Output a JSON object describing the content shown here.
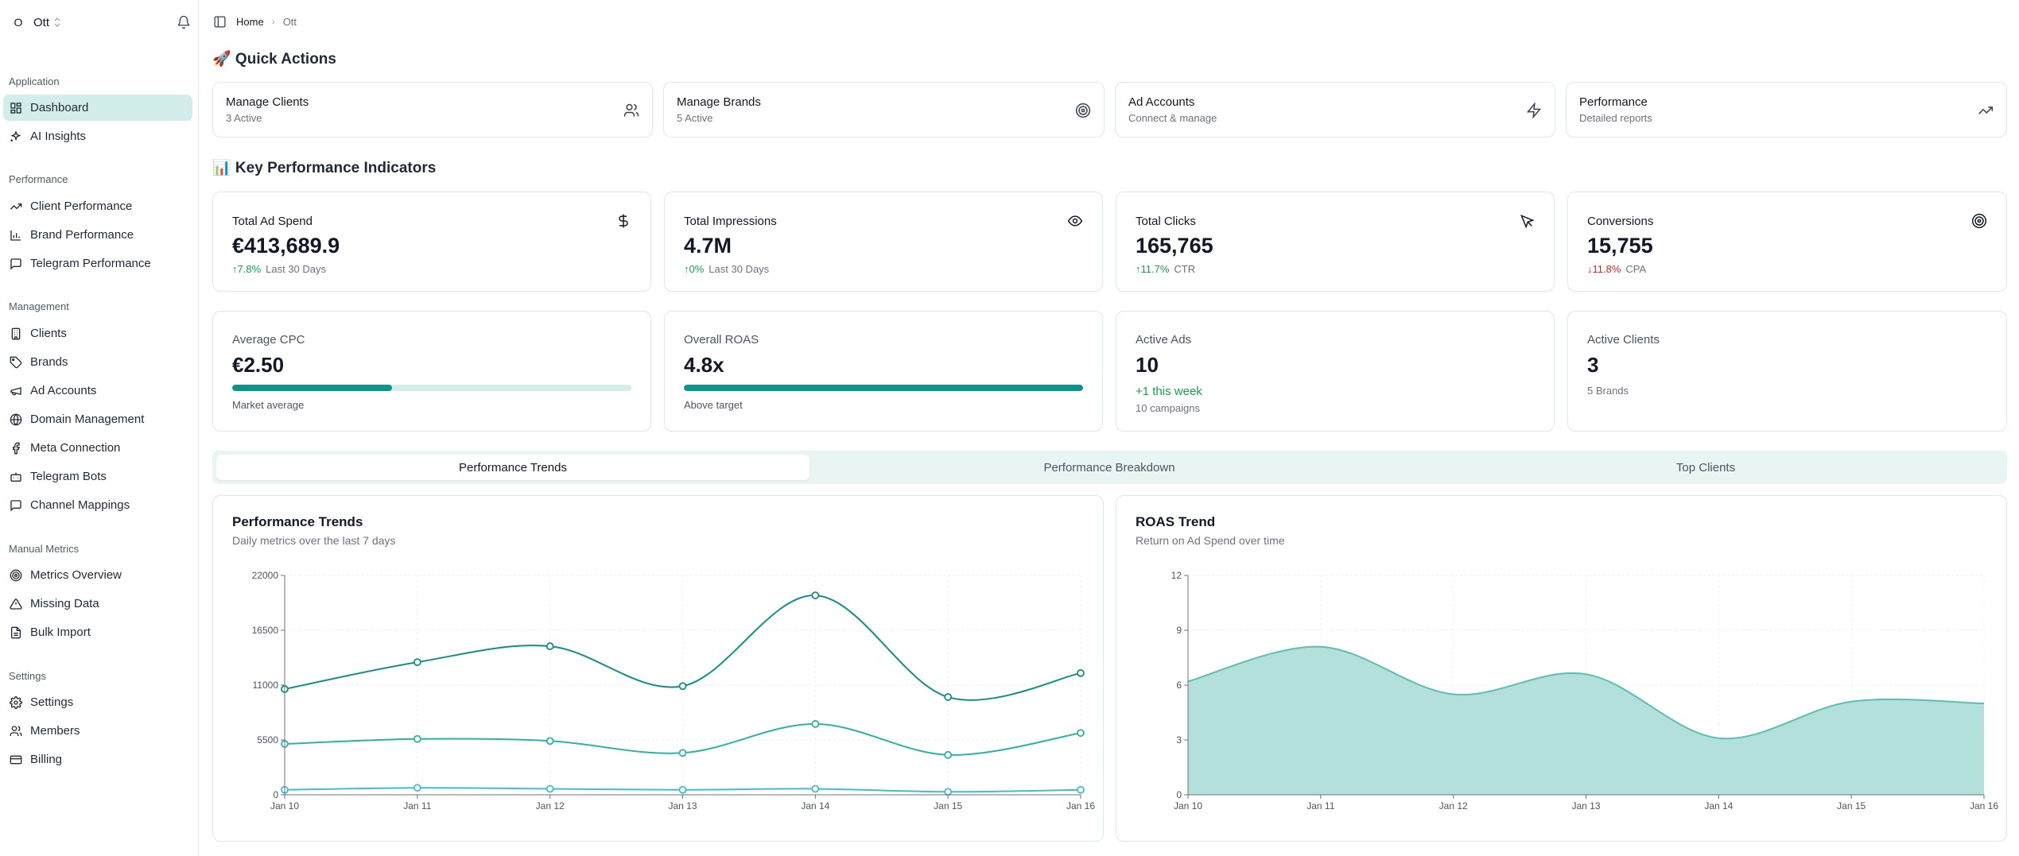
{
  "workspace": {
    "initial": "O",
    "name": "Ott"
  },
  "sidebar": {
    "groups": [
      {
        "label": "Application",
        "items": [
          {
            "label": "Dashboard",
            "icon": "grid-icon",
            "active": true
          },
          {
            "label": "AI Insights",
            "icon": "sparkles-icon"
          }
        ]
      },
      {
        "label": "Performance",
        "items": [
          {
            "label": "Client Performance",
            "icon": "trending-up-icon"
          },
          {
            "label": "Brand Performance",
            "icon": "bar-chart-icon"
          },
          {
            "label": "Telegram Performance",
            "icon": "message-icon"
          }
        ]
      },
      {
        "label": "Management",
        "items": [
          {
            "label": "Clients",
            "icon": "building-icon"
          },
          {
            "label": "Brands",
            "icon": "tag-icon"
          },
          {
            "label": "Ad Accounts",
            "icon": "megaphone-icon"
          },
          {
            "label": "Domain Management",
            "icon": "globe-icon"
          },
          {
            "label": "Meta Connection",
            "icon": "facebook-icon"
          },
          {
            "label": "Telegram Bots",
            "icon": "bot-icon"
          },
          {
            "label": "Channel Mappings",
            "icon": "message-icon"
          }
        ]
      },
      {
        "label": "Manual Metrics",
        "items": [
          {
            "label": "Metrics Overview",
            "icon": "target-icon"
          },
          {
            "label": "Missing Data",
            "icon": "alert-triangle-icon"
          },
          {
            "label": "Bulk Import",
            "icon": "file-icon"
          }
        ]
      },
      {
        "label": "Settings",
        "items": [
          {
            "label": "Settings",
            "icon": "gear-icon"
          },
          {
            "label": "Members",
            "icon": "users-icon"
          },
          {
            "label": "Billing",
            "icon": "credit-card-icon"
          }
        ]
      }
    ]
  },
  "breadcrumb": {
    "home": "Home",
    "current": "Ott"
  },
  "quick_actions": {
    "title": "🚀 Quick Actions",
    "items": [
      {
        "title": "Manage Clients",
        "sub": "3 Active",
        "icon": "users-icon"
      },
      {
        "title": "Manage Brands",
        "sub": "5 Active",
        "icon": "target-icon"
      },
      {
        "title": "Ad Accounts",
        "sub": "Connect & manage",
        "icon": "zap-icon"
      },
      {
        "title": "Performance",
        "sub": "Detailed reports",
        "icon": "trending-up-icon"
      }
    ]
  },
  "kpis": {
    "title": "📊 Key Performance Indicators",
    "cards": [
      {
        "label": "Total Ad Spend",
        "value": "€413,689.9",
        "change": "7.8%",
        "dir": "up",
        "note": "Last 30 Days",
        "icon": "dollar-icon"
      },
      {
        "label": "Total Impressions",
        "value": "4.7M",
        "change": "0%",
        "dir": "up",
        "note": "Last 30 Days",
        "icon": "eye-icon"
      },
      {
        "label": "Total Clicks",
        "value": "165,765",
        "change": "11.7%",
        "dir": "up",
        "note": "CTR",
        "icon": "cursor-icon"
      },
      {
        "label": "Conversions",
        "value": "15,755",
        "change": "11.8%",
        "dir": "down",
        "note": "CPA",
        "icon": "target-icon"
      }
    ]
  },
  "metrics": {
    "avg_cpc": {
      "label": "Average CPC",
      "value": "€2.50",
      "progress": 0.4,
      "foot": "Market average"
    },
    "roas": {
      "label": "Overall ROAS",
      "value": "4.8x",
      "progress": 1.0,
      "foot": "Above target"
    },
    "active_ads": {
      "label": "Active Ads",
      "value": "10",
      "delta": "+1 this week",
      "foot": "10 campaigns"
    },
    "active_clients": {
      "label": "Active Clients",
      "value": "3",
      "foot": "5 Brands"
    }
  },
  "tabs": [
    {
      "label": "Performance Trends",
      "active": true
    },
    {
      "label": "Performance Breakdown"
    },
    {
      "label": "Top Clients"
    }
  ],
  "charts": {
    "trends": {
      "title": "Performance Trends",
      "subtitle": "Daily metrics over the last 7 days"
    },
    "roas": {
      "title": "ROAS Trend",
      "subtitle": "Return on Ad Spend over time"
    }
  },
  "chart_data": [
    {
      "type": "line",
      "title": "Performance Trends",
      "x": [
        "Jan 10",
        "Jan 11",
        "Jan 12",
        "Jan 13",
        "Jan 14",
        "Jan 15",
        "Jan 16"
      ],
      "ylim": [
        0,
        22000
      ],
      "yticks": [
        0,
        5500,
        11000,
        16500,
        22000
      ],
      "series": [
        {
          "values": [
            10600,
            13300,
            14900,
            10900,
            20000,
            9800,
            12200
          ],
          "color": "#0f8f87"
        },
        {
          "values": [
            5100,
            5600,
            5400,
            4200,
            7100,
            4000,
            6200
          ],
          "color": "#2bb3a6"
        },
        {
          "values": [
            500,
            700,
            600,
            500,
            600,
            300,
            500
          ],
          "color": "#3fbfcf"
        }
      ],
      "grid": true
    },
    {
      "type": "area",
      "title": "ROAS Trend",
      "x": [
        "Jan 10",
        "Jan 11",
        "Jan 12",
        "Jan 13",
        "Jan 14",
        "Jan 15",
        "Jan 16"
      ],
      "ylim": [
        0,
        12
      ],
      "yticks": [
        0,
        3,
        6,
        9,
        12
      ],
      "series": [
        {
          "values": [
            6.2,
            8.1,
            5.5,
            6.6,
            3.1,
            5.1,
            5.0
          ],
          "color": "#5bbfb2",
          "fill": "#b3e0da"
        }
      ],
      "grid": true
    }
  ]
}
